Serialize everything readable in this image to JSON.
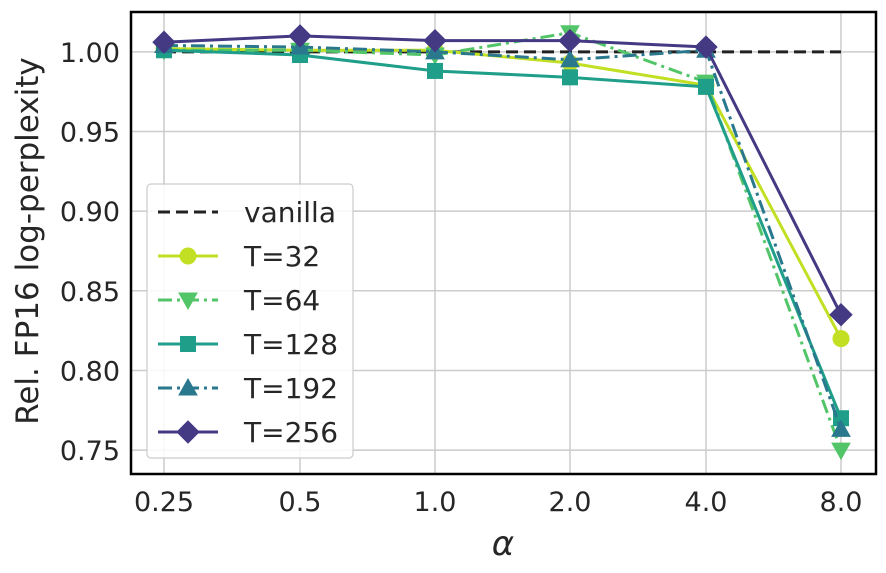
{
  "chart_data": {
    "type": "line",
    "title": "",
    "xlabel": "α",
    "ylabel": "Rel. FP16 log-perplexity",
    "categories": [
      "0.25",
      "0.5",
      "1.0",
      "2.0",
      "4.0",
      "8.0"
    ],
    "ylim": [
      0.735,
      1.025
    ],
    "yticks": [
      "0.75",
      "0.80",
      "0.85",
      "0.90",
      "0.95",
      "1.00"
    ],
    "grid": true,
    "legend_position": "lower-left",
    "series": [
      {
        "name": "vanilla",
        "values": [
          1.0,
          1.0,
          1.0,
          1.0,
          1.0,
          1.0
        ],
        "color": "#222222",
        "dash": "dashed",
        "marker": "none"
      },
      {
        "name": "T=32",
        "values": [
          1.002,
          1.001,
          1.001,
          0.993,
          0.979,
          0.82
        ],
        "color": "#c2df23",
        "dash": "solid",
        "marker": "circle"
      },
      {
        "name": "T=64",
        "values": [
          1.001,
          1.001,
          0.998,
          1.012,
          0.981,
          0.75
        ],
        "color": "#52c569",
        "dash": "dashdot",
        "marker": "triangle-down"
      },
      {
        "name": "T=128",
        "values": [
          1.001,
          0.998,
          0.988,
          0.984,
          0.978,
          0.77
        ],
        "color": "#1f9e89",
        "dash": "solid",
        "marker": "square"
      },
      {
        "name": "T=192",
        "values": [
          1.004,
          1.003,
          1.0,
          0.995,
          1.001,
          0.763
        ],
        "color": "#2a788e",
        "dash": "dashdot",
        "marker": "triangle-up"
      },
      {
        "name": "T=256",
        "values": [
          1.006,
          1.01,
          1.007,
          1.007,
          1.003,
          0.835
        ],
        "color": "#443983",
        "dash": "solid",
        "marker": "diamond"
      }
    ]
  }
}
